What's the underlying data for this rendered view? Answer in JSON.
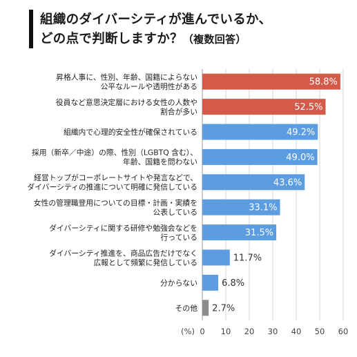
{
  "title": {
    "line1": "組織のダイバーシティが進んでいるか、",
    "line2": "どの点で判断しますか？",
    "note": "（複数回答）"
  },
  "colors": {
    "highlight": "#d45a4a",
    "normal": "#5b9de0",
    "other": "#8c8c8c"
  },
  "chart_data": {
    "type": "bar",
    "orientation": "horizontal",
    "unit_label": "(%)",
    "xlim": [
      0,
      60
    ],
    "ticks": [
      "0",
      "10",
      "20",
      "30",
      "40",
      "50",
      "60"
    ],
    "grid": true,
    "categories": [
      [
        "昇格人事に、性別、年齢、国籍によらない",
        "公平なルールや透明性がある"
      ],
      [
        "役員など意思決定層における女性の人数や",
        "割合が多い"
      ],
      [
        "組織内で心理的安全性が確保されている"
      ],
      [
        "採用（新卒／中途）の際、性別（LGBTQ 含む）、",
        "年齢、国籍を問わない"
      ],
      [
        "経営トップがコーポレートサイトや発言などで、",
        "ダイバーシティの推進について明確に発信している"
      ],
      [
        "女性の管理職登用についての目標・計画・実績を",
        "公表している"
      ],
      [
        "ダイバーシティに関する研修や勉強会などを",
        "行っている"
      ],
      [
        "ダイバーシティ推進を、商品広告だけでなく",
        "広報として頻繁に発信している"
      ],
      [
        "分からない"
      ],
      [
        "その他"
      ]
    ],
    "values": [
      58.8,
      52.5,
      49.2,
      49.0,
      43.6,
      33.1,
      31.5,
      11.7,
      6.8,
      2.7
    ],
    "value_labels": [
      "58.8%",
      "52.5%",
      "49.2%",
      "49.0%",
      "43.6%",
      "33.1%",
      "31.5%",
      "11.7%",
      "6.8%",
      "2.7%"
    ],
    "bar_colors": [
      "highlight",
      "highlight",
      "normal",
      "normal",
      "normal",
      "normal",
      "normal",
      "normal",
      "normal",
      "other"
    ]
  }
}
